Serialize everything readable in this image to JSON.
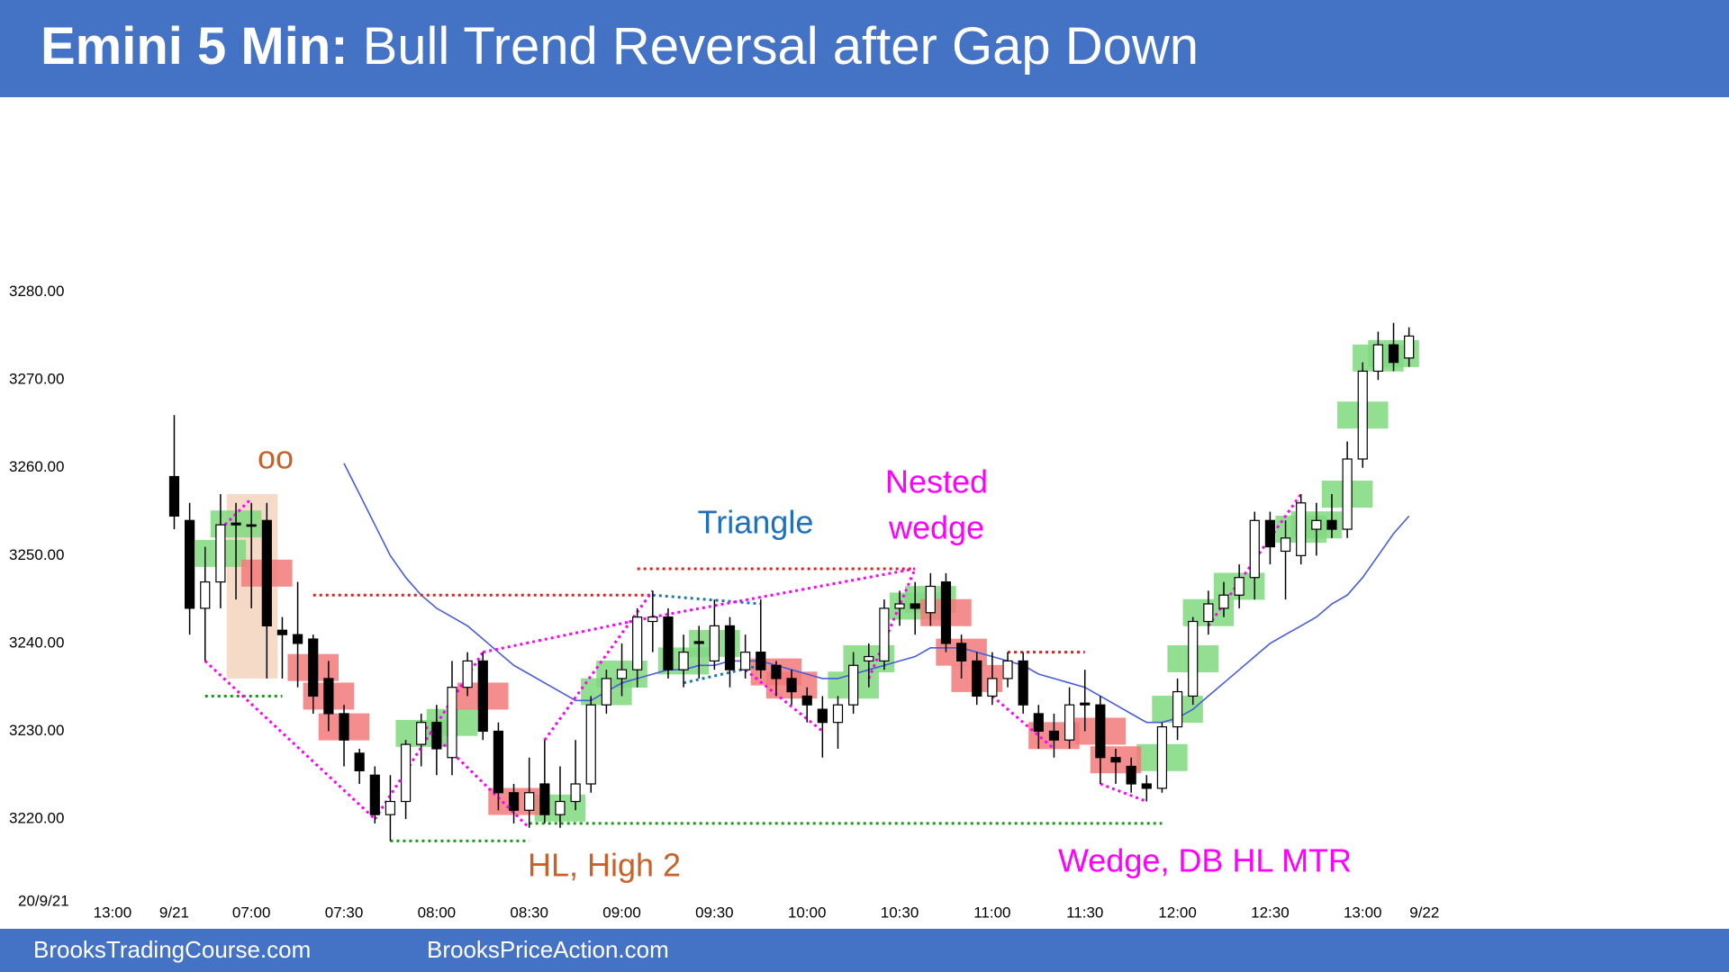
{
  "chart_data": {
    "type": "candlestick",
    "title_label": "Emini 5 Min:",
    "title": "Bull Trend Reversal after Gap Down",
    "date_label": "20/9/21",
    "footer_left": "BrooksTradingCourse.com",
    "footer_right": "BrooksPriceAction.com",
    "annotations": {
      "oo": "oo",
      "triangle": "Triangle",
      "nested": "Nested",
      "wedge": "wedge",
      "hl": "HL, High 2",
      "mtr": "Wedge, DB HL MTR"
    },
    "xlim": [
      -7,
      86
    ],
    "ylim": [
      3211.6,
      3302.2
    ],
    "yticks": [
      {
        "value": 3220,
        "label": "3220.00"
      },
      {
        "value": 3230,
        "label": "3230.00"
      },
      {
        "value": 3240,
        "label": "3240.00"
      },
      {
        "value": 3250,
        "label": "3250.00"
      },
      {
        "value": 3260,
        "label": "3260.00"
      },
      {
        "value": 3270,
        "label": "3270.00"
      },
      {
        "value": 3280,
        "label": "3280.00"
      }
    ],
    "xticks": [
      {
        "value": -4,
        "label": "13:00"
      },
      {
        "value": 0,
        "label": "9/21"
      },
      {
        "value": 5,
        "label": "07:00"
      },
      {
        "value": 11,
        "label": "07:30"
      },
      {
        "value": 17,
        "label": "08:00"
      },
      {
        "value": 23,
        "label": "08:30"
      },
      {
        "value": 29,
        "label": "09:00"
      },
      {
        "value": 35,
        "label": "09:30"
      },
      {
        "value": 41,
        "label": "10:00"
      },
      {
        "value": 47,
        "label": "10:30"
      },
      {
        "value": 53,
        "label": "11:00"
      },
      {
        "value": 59,
        "label": "11:30"
      },
      {
        "value": 65,
        "label": "12:00"
      },
      {
        "value": 71,
        "label": "12:30"
      },
      {
        "value": 77,
        "label": "13:00"
      },
      {
        "value": 81,
        "label": "9/22"
      }
    ],
    "up_color": "#ffffff",
    "down_color": "#000000",
    "open": [
      3259,
      3254,
      3244,
      3247,
      3253.7,
      3253.5,
      3254,
      3241.5,
      3241,
      3240.5,
      3236,
      3232,
      3227.5,
      3225,
      3220.5,
      3222,
      3228.5,
      3231,
      3227,
      3235,
      3238,
      3230,
      3223,
      3221,
      3224,
      3220.5,
      3222,
      3224,
      3233,
      3236,
      3237,
      3242.5,
      3243,
      3237,
      3240.2,
      3238,
      3242,
      3237,
      3239,
      3237.5,
      3236,
      3234,
      3232.5,
      3231,
      3233,
      3238,
      3238,
      3244,
      3244.5,
      3243.5,
      3247,
      3240,
      3238,
      3234,
      3236,
      3238,
      3232,
      3230,
      3229,
      3233.2,
      3233,
      3227,
      3226,
      3224,
      3223.5,
      3230.5,
      3234,
      3242.5,
      3244,
      3245.5,
      3247.5,
      3254,
      3250.5,
      3250,
      3253,
      3254,
      3253,
      3261,
      3271,
      3274,
      3272.5
    ],
    "high": [
      3266,
      3256,
      3251,
      3257,
      3256,
      3256,
      3256,
      3243,
      3247,
      3241,
      3238,
      3233,
      3228,
      3226,
      3225,
      3229,
      3232,
      3233,
      3238,
      3239,
      3239,
      3231,
      3224,
      3227,
      3229,
      3226,
      3229,
      3234,
      3237,
      3240,
      3244,
      3246,
      3244,
      3241,
      3242,
      3245,
      3243,
      3241,
      3245,
      3238,
      3237,
      3235,
      3234,
      3234,
      3239,
      3240,
      3245,
      3246,
      3247,
      3248,
      3248,
      3241,
      3239,
      3239,
      3239,
      3239,
      3233,
      3232,
      3235,
      3237,
      3234,
      3228,
      3227,
      3225,
      3231,
      3236,
      3243,
      3246,
      3247,
      3249,
      3255,
      3255,
      3254,
      3257,
      3256,
      3257,
      3263,
      3272,
      3275.5,
      3276.5,
      3276
    ],
    "low": [
      3253,
      3241,
      3238,
      3244,
      3245,
      3244,
      3236,
      3236,
      3235,
      3232,
      3230,
      3226,
      3224,
      3219.5,
      3217.5,
      3220,
      3226,
      3225,
      3225,
      3234,
      3229,
      3221,
      3219.5,
      3219,
      3219.5,
      3219,
      3221,
      3223,
      3232,
      3234,
      3235,
      3239,
      3236,
      3235,
      3236,
      3237,
      3235,
      3236,
      3236,
      3234,
      3233,
      3231,
      3227,
      3228,
      3232,
      3235,
      3237,
      3242,
      3241,
      3242,
      3239,
      3236,
      3233,
      3233,
      3235,
      3232,
      3228,
      3227,
      3228,
      3230,
      3224,
      3224,
      3223,
      3222,
      3223,
      3229,
      3233,
      3241,
      3243,
      3244,
      3245,
      3249,
      3245,
      3249,
      3250,
      3252,
      3252,
      3260,
      3270,
      3271,
      3271.5
    ],
    "close": [
      3254.5,
      3244,
      3247,
      3253.5,
      3253.5,
      3253.4,
      3242,
      3241,
      3240,
      3234,
      3232,
      3229,
      3225.5,
      3220.5,
      3222,
      3228.5,
      3231,
      3228,
      3235,
      3238,
      3230,
      3223,
      3221,
      3223,
      3220.5,
      3222,
      3224,
      3233,
      3236,
      3237,
      3243,
      3243,
      3237,
      3239,
      3240,
      3242,
      3237,
      3239,
      3237,
      3236,
      3234.5,
      3233,
      3231,
      3233,
      3237.5,
      3238.5,
      3244,
      3244.5,
      3244,
      3246.5,
      3240,
      3238,
      3234,
      3236,
      3238,
      3233,
      3230,
      3229,
      3233,
      3233,
      3227,
      3226.5,
      3224,
      3223.5,
      3230.5,
      3234.5,
      3242.5,
      3244.5,
      3245.5,
      3247.5,
      3254,
      3251,
      3252,
      3256,
      3254,
      3253,
      3261,
      3271,
      3274,
      3272,
      3275
    ],
    "ma": {
      "color": "#4a5bdc",
      "values": [
        null,
        null,
        null,
        null,
        null,
        null,
        null,
        null,
        null,
        null,
        null,
        3260.5,
        3257,
        3253.5,
        3250,
        3247.5,
        3245.5,
        3244,
        3243,
        3242,
        3240.5,
        3239,
        3237.5,
        3236.5,
        3235.5,
        3234.5,
        3233.5,
        3233.5,
        3234.5,
        3235.5,
        3236,
        3236.5,
        3237,
        3237,
        3237.5,
        3237.5,
        3238,
        3238,
        3238,
        3237.5,
        3237,
        3236.5,
        3236,
        3236,
        3236.5,
        3237,
        3237.5,
        3238,
        3238.5,
        3239.5,
        3239.5,
        3239.5,
        3239,
        3238.5,
        3238,
        3237.5,
        3236.5,
        3236,
        3235.5,
        3235,
        3234,
        3233,
        3232,
        3231,
        3231,
        3231.5,
        3232.5,
        3234,
        3235.5,
        3237,
        3238.5,
        3240,
        3241,
        3242,
        3243,
        3244.5,
        3245.5,
        3247.5,
        3250,
        3252.5,
        3254.5
      ]
    },
    "bull_signals": {
      "color": "#7fd97f",
      "bars": [
        3,
        4,
        16,
        18,
        25,
        28,
        29,
        33,
        35,
        44,
        45,
        48,
        49,
        64,
        65,
        66,
        67,
        69,
        73,
        74,
        76,
        77,
        78,
        79
      ]
    },
    "bear_signals": {
      "color": "#f27a7a",
      "bars": [
        6,
        9,
        10,
        11,
        20,
        22,
        39,
        40,
        50,
        51,
        52,
        57,
        60,
        61
      ]
    },
    "shade": {
      "color": "#f6dac8",
      "x": [
        3.4,
        6.7
      ],
      "y": [
        3236,
        3257
      ]
    },
    "lines": [
      {
        "color": "#1a9a1a",
        "from": [
          2,
          3234
        ],
        "to": [
          7,
          3234
        ]
      },
      {
        "color": "#1a9a1a",
        "from": [
          14,
          3217.5
        ],
        "to": [
          23,
          3217.5
        ]
      },
      {
        "color": "#1a9a1a",
        "from": [
          23,
          3219.5
        ],
        "to": [
          64,
          3219.5
        ]
      },
      {
        "color": "#e02020",
        "from": [
          9,
          3245.5
        ],
        "to": [
          31,
          3245.5
        ]
      },
      {
        "color": "#e02020",
        "from": [
          30,
          3248.5
        ],
        "to": [
          48,
          3248.5
        ]
      },
      {
        "color": "#e02020",
        "from": [
          54,
          3239
        ],
        "to": [
          59,
          3239
        ]
      },
      {
        "color": "#2277aa",
        "from": [
          31,
          3245.5
        ],
        "to": [
          38,
          3244.5
        ]
      },
      {
        "color": "#2277aa",
        "from": [
          33,
          3235.5
        ],
        "to": [
          38,
          3237.5
        ]
      },
      {
        "color": "#ff00ff",
        "from": [
          2,
          3238
        ],
        "to": [
          13,
          3220
        ]
      },
      {
        "color": "#ff00ff",
        "from": [
          3,
          3253
        ],
        "to": [
          5,
          3256.5
        ]
      },
      {
        "color": "#ff00ff",
        "from": [
          13,
          3220
        ],
        "to": [
          20,
          3239
        ]
      },
      {
        "color": "#ff00ff",
        "from": [
          20,
          3239
        ],
        "to": [
          31,
          3243
        ]
      },
      {
        "color": "#ff00ff",
        "from": [
          31,
          3243
        ],
        "to": [
          48,
          3248.5
        ]
      },
      {
        "color": "#ff00ff",
        "from": [
          16,
          3231
        ],
        "to": [
          23,
          3219
        ]
      },
      {
        "color": "#ff00ff",
        "from": [
          24,
          3229
        ],
        "to": [
          31,
          3246
        ]
      },
      {
        "color": "#ff00ff",
        "from": [
          37,
          3237
        ],
        "to": [
          42,
          3230
        ]
      },
      {
        "color": "#ff00ff",
        "from": [
          45,
          3236
        ],
        "to": [
          48,
          3248.5
        ]
      },
      {
        "color": "#ff00ff",
        "from": [
          53,
          3234
        ],
        "to": [
          57,
          3228
        ]
      },
      {
        "color": "#ff00ff",
        "from": [
          60,
          3224
        ],
        "to": [
          63,
          3222
        ]
      },
      {
        "color": "#ff00ff",
        "from": [
          67,
          3242
        ],
        "to": [
          73,
          3257
        ]
      }
    ]
  }
}
